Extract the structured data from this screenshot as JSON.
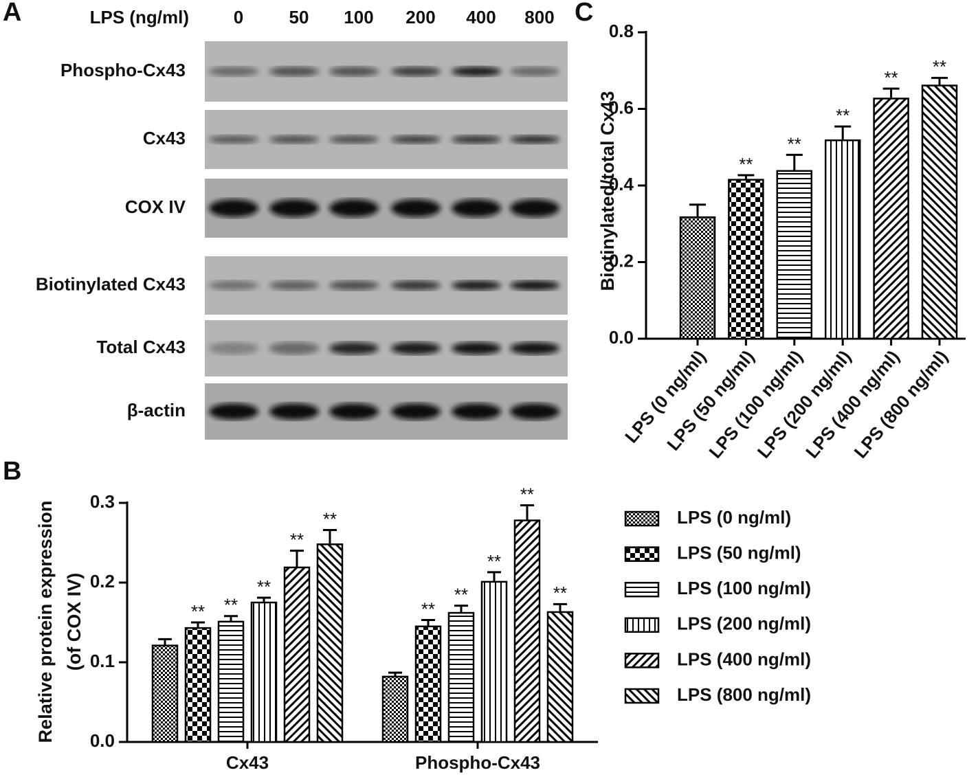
{
  "blot": {
    "panel": "A",
    "header": "LPS (ng/ml)",
    "doses": [
      "0",
      "50",
      "100",
      "200",
      "400",
      "800"
    ],
    "rows": [
      "Phospho-Cx43",
      "Cx43",
      "COX IV",
      "Biotinylated Cx43",
      "Total Cx43",
      "β-actin"
    ]
  },
  "chart_data": [
    {
      "type": "bar",
      "panel": "B",
      "ylabel": [
        "Relative protein expression",
        "(of COX IV)"
      ],
      "categories": [
        "Cx43",
        "Phospho-Cx43"
      ],
      "ylim": [
        0,
        0.3
      ],
      "yticks": [
        {
          "value": 0,
          "label": "0.0"
        },
        0.1,
        0.2,
        0.3
      ],
      "legend": "right",
      "series": [
        {
          "name": "LPS (0 ng/ml)",
          "color": "#000",
          "pattern": "dots",
          "values": [
            0.121,
            0.082
          ],
          "errors": [
            0.008,
            0.005
          ],
          "significance": [
            null,
            null
          ]
        },
        {
          "name": "LPS (50 ng/ml)",
          "color": "#000",
          "pattern": "checker",
          "values": [
            0.143,
            0.145
          ],
          "errors": [
            0.007,
            0.008
          ],
          "significance": [
            "**",
            "**"
          ]
        },
        {
          "name": "LPS (100 ng/ml)",
          "color": "#000",
          "pattern": "hlines",
          "values": [
            0.151,
            0.162
          ],
          "errors": [
            0.007,
            0.009
          ],
          "significance": [
            "**",
            "**"
          ]
        },
        {
          "name": "LPS (200 ng/ml)",
          "color": "#000",
          "pattern": "vlines",
          "values": [
            0.175,
            0.201
          ],
          "errors": [
            0.006,
            0.012
          ],
          "significance": [
            "**",
            "**"
          ]
        },
        {
          "name": "LPS (400 ng/ml)",
          "color": "#000",
          "pattern": "diagup",
          "values": [
            0.219,
            0.278
          ],
          "errors": [
            0.021,
            0.019
          ],
          "significance": [
            "**",
            "**"
          ]
        },
        {
          "name": "LPS (800 ng/ml)",
          "color": "#000",
          "pattern": "diagdown",
          "values": [
            0.248,
            0.163
          ],
          "errors": [
            0.018,
            0.01
          ],
          "significance": [
            "**",
            "**"
          ]
        }
      ]
    },
    {
      "type": "bar",
      "panel": "C",
      "ylabel": "Biotinylated/total Cx43",
      "categories": [
        "LPS (0 ng/ml)",
        "LPS (50 ng/ml)",
        "LPS (100 ng/ml)",
        "LPS (200 ng/ml)",
        "LPS (400 ng/ml)",
        "LPS (800 ng/ml)"
      ],
      "values": [
        0.317,
        0.415,
        0.438,
        0.518,
        0.627,
        0.661
      ],
      "errors": [
        0.033,
        0.012,
        0.042,
        0.036,
        0.026,
        0.02
      ],
      "significance": [
        null,
        "**",
        "**",
        "**",
        "**",
        "**"
      ],
      "patterns": [
        "dots",
        "checker",
        "hlines",
        "vlines",
        "diagup",
        "diagdown"
      ],
      "color": "#000",
      "ylim": [
        0,
        0.8
      ],
      "yticks": [
        {
          "value": 0,
          "label": "0.0"
        },
        {
          "value": 0.2,
          "label": "0.2"
        },
        {
          "value": 0.4,
          "label": "0.4"
        },
        {
          "value": 0.6,
          "label": "0.6"
        },
        {
          "value": 0.8,
          "label": "0.8"
        }
      ]
    }
  ]
}
